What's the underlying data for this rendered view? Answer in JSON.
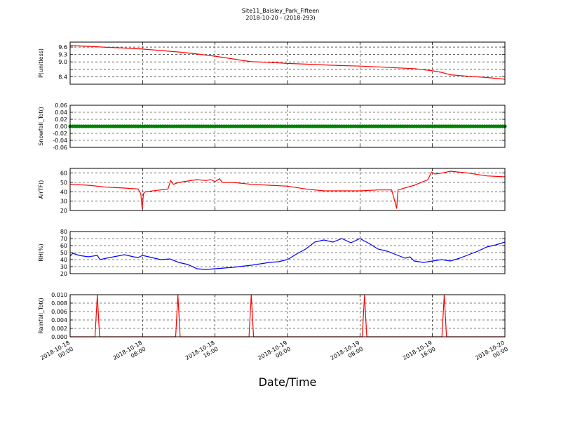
{
  "figure": {
    "title": "Site11_Baisley_Park_Fifteen",
    "subtitle": "2018-10-20 - (2018-293)",
    "xlabel": "Date/Time"
  },
  "x_ticks": [
    {
      "line1": "2018-10-18",
      "line2": "00:00"
    },
    {
      "line1": "2018-10-18",
      "line2": "08:00"
    },
    {
      "line1": "2018-10-18",
      "line2": "16:00"
    },
    {
      "line1": "2018-10-19",
      "line2": "00:00"
    },
    {
      "line1": "2018-10-19",
      "line2": "08:00"
    },
    {
      "line1": "2018-10-19",
      "line2": "16:00"
    },
    {
      "line1": "2018-10-20",
      "line2": "00:00"
    }
  ],
  "chart_data": [
    {
      "type": "line",
      "ylabel": "P(unitless)",
      "ylim": [
        8.1,
        9.8
      ],
      "yticks": [
        "8.4",
        "9.0",
        "9.3",
        "9.6"
      ],
      "yticks_extra": [
        "8.7"
      ],
      "color": "#ff0000",
      "grid": true,
      "x_unit": "hours since 2018-10-18 00:00",
      "xlim": [
        0,
        48
      ],
      "points": [
        [
          0,
          9.66
        ],
        [
          2,
          9.63
        ],
        [
          4,
          9.59
        ],
        [
          6,
          9.56
        ],
        [
          8,
          9.52
        ],
        [
          10,
          9.46
        ],
        [
          12,
          9.4
        ],
        [
          14,
          9.32
        ],
        [
          16,
          9.23
        ],
        [
          18,
          9.12
        ],
        [
          19,
          9.06
        ],
        [
          20,
          9.01
        ],
        [
          22,
          8.98
        ],
        [
          24,
          8.94
        ],
        [
          26,
          8.91
        ],
        [
          28,
          8.88
        ],
        [
          30,
          8.85
        ],
        [
          32,
          8.83
        ],
        [
          34,
          8.8
        ],
        [
          36,
          8.76
        ],
        [
          38,
          8.73
        ],
        [
          40,
          8.64
        ],
        [
          41,
          8.58
        ],
        [
          42,
          8.48
        ],
        [
          44,
          8.42
        ],
        [
          46,
          8.37
        ],
        [
          48,
          8.3
        ]
      ]
    },
    {
      "type": "scatter",
      "ylabel": "Snowfall_Tot()",
      "ylim": [
        -0.06,
        0.06
      ],
      "yticks": [
        "-0.06",
        "-0.04",
        "-0.02",
        "0.00",
        "0.02",
        "0.04",
        "0.06"
      ],
      "color": "#008000",
      "grid": true,
      "x_unit": "hours since 2018-10-18 00:00",
      "xlim": [
        0,
        48
      ],
      "constant_value": 0.0
    },
    {
      "type": "line",
      "ylabel": "AirTF()",
      "ylim": [
        20,
        65
      ],
      "yticks": [
        "20",
        "30",
        "40",
        "50",
        "60"
      ],
      "color": "#ff0000",
      "grid": true,
      "x_unit": "hours since 2018-10-18 00:00",
      "xlim": [
        0,
        48
      ],
      "points": [
        [
          0,
          48
        ],
        [
          2,
          47
        ],
        [
          4,
          45
        ],
        [
          6,
          44
        ],
        [
          7.5,
          43
        ],
        [
          7.8,
          38
        ],
        [
          7.95,
          22
        ],
        [
          8.1,
          38
        ],
        [
          8.3,
          40
        ],
        [
          10,
          42
        ],
        [
          10.8,
          43
        ],
        [
          11.1,
          52
        ],
        [
          11.4,
          48
        ],
        [
          12,
          50
        ],
        [
          14,
          53
        ],
        [
          15,
          52
        ],
        [
          15.5,
          53
        ],
        [
          16,
          51
        ],
        [
          16.5,
          54
        ],
        [
          16.8,
          50
        ],
        [
          18,
          50
        ],
        [
          20,
          48
        ],
        [
          22,
          47
        ],
        [
          24,
          46
        ],
        [
          26,
          43
        ],
        [
          28,
          41
        ],
        [
          30,
          41
        ],
        [
          32,
          41
        ],
        [
          34,
          42
        ],
        [
          35.5,
          42
        ],
        [
          35.9,
          28
        ],
        [
          36.05,
          22
        ],
        [
          36.2,
          42
        ],
        [
          38,
          47
        ],
        [
          39.5,
          53
        ],
        [
          39.9,
          61
        ],
        [
          40.3,
          59
        ],
        [
          41,
          60
        ],
        [
          42,
          62
        ],
        [
          44,
          60
        ],
        [
          46,
          57
        ],
        [
          48,
          56
        ]
      ]
    },
    {
      "type": "line",
      "ylabel": "RH(%)",
      "ylim": [
        20,
        80
      ],
      "yticks": [
        "20",
        "30",
        "40",
        "50",
        "60",
        "70",
        "80"
      ],
      "color": "#0000ff",
      "grid": true,
      "x_unit": "hours since 2018-10-18 00:00",
      "xlim": [
        0,
        48
      ],
      "points": [
        [
          0,
          45
        ],
        [
          0.3,
          49
        ],
        [
          1,
          46
        ],
        [
          2,
          44
        ],
        [
          3,
          46
        ],
        [
          3.3,
          40
        ],
        [
          4,
          42
        ],
        [
          6,
          47
        ],
        [
          7,
          44
        ],
        [
          7.5,
          43
        ],
        [
          8,
          46
        ],
        [
          9,
          43
        ],
        [
          10,
          40
        ],
        [
          11,
          41
        ],
        [
          12,
          36
        ],
        [
          13,
          33
        ],
        [
          14,
          27
        ],
        [
          15,
          26
        ],
        [
          16,
          27
        ],
        [
          17,
          28
        ],
        [
          18,
          29
        ],
        [
          20,
          32
        ],
        [
          22,
          36
        ],
        [
          23,
          37
        ],
        [
          24,
          40
        ],
        [
          25,
          48
        ],
        [
          26,
          55
        ],
        [
          27,
          65
        ],
        [
          28,
          68
        ],
        [
          29,
          65
        ],
        [
          30,
          70
        ],
        [
          31,
          64
        ],
        [
          32,
          70
        ],
        [
          33,
          63
        ],
        [
          34,
          55
        ],
        [
          35,
          52
        ],
        [
          36,
          47
        ],
        [
          37,
          42
        ],
        [
          37.5,
          44
        ],
        [
          38,
          38
        ],
        [
          39,
          36
        ],
        [
          40,
          38
        ],
        [
          41,
          40
        ],
        [
          42,
          38
        ],
        [
          43,
          42
        ],
        [
          44,
          47
        ],
        [
          45,
          52
        ],
        [
          46,
          58
        ],
        [
          47,
          61
        ],
        [
          48,
          65
        ]
      ]
    },
    {
      "type": "line",
      "ylabel": "Rainfall_Tot()",
      "ylim": [
        0,
        0.01
      ],
      "yticks": [
        "0.000",
        "0.002",
        "0.004",
        "0.006",
        "0.008",
        "0.010"
      ],
      "color": "#ff0000",
      "grid": true,
      "x_unit": "hours since 2018-10-18 00:00",
      "xlim": [
        0,
        48
      ],
      "points": [
        [
          0,
          0
        ],
        [
          2.75,
          0
        ],
        [
          3.0,
          0.01
        ],
        [
          3.25,
          0
        ],
        [
          11.65,
          0
        ],
        [
          11.9,
          0.01
        ],
        [
          12.15,
          0
        ],
        [
          19.75,
          0
        ],
        [
          20.0,
          0.01
        ],
        [
          20.25,
          0
        ],
        [
          32.25,
          0
        ],
        [
          32.5,
          0.01
        ],
        [
          32.75,
          0
        ],
        [
          41.05,
          0
        ],
        [
          41.3,
          0.01
        ],
        [
          41.55,
          0
        ],
        [
          48,
          0
        ]
      ]
    }
  ]
}
